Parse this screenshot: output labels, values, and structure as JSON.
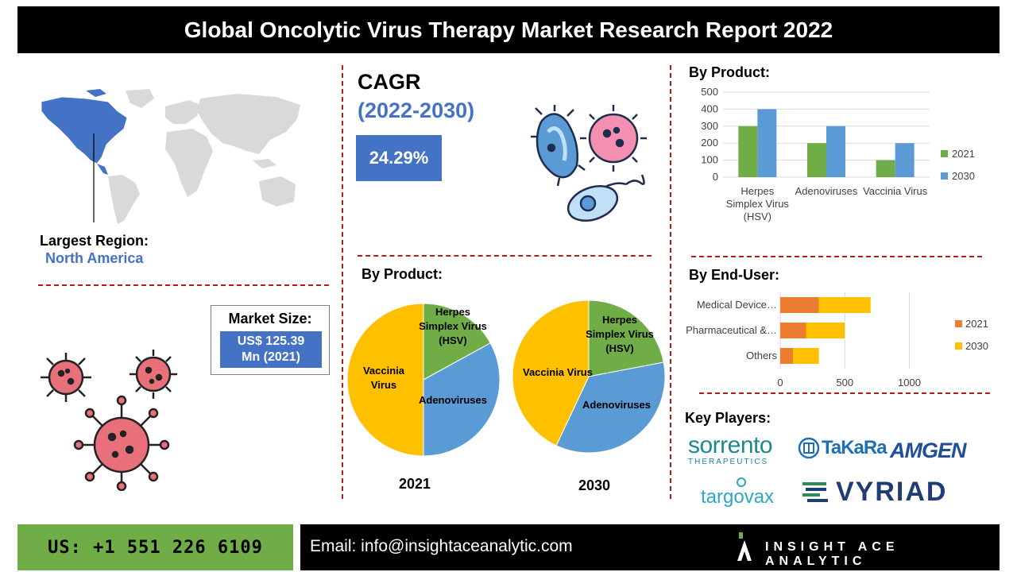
{
  "title": "Global Oncolytic Virus Therapy Market Research Report 2022",
  "region": {
    "label": "Largest Region:",
    "value": "North America"
  },
  "cagr": {
    "title": "CAGR",
    "period": "(2022-2030)",
    "value": "24.29%"
  },
  "market_size": {
    "label": "Market Size:",
    "value_line1": "US$ 125.39",
    "value_line2": "Mn (2021)"
  },
  "sections": {
    "by_product_top": "By Product:",
    "by_product_mid": "By Product:",
    "by_end_user": "By End-User:",
    "key_players": "Key Players:"
  },
  "pie_labels": {
    "hsv_line1": "Herpes",
    "hsv_line2": "Simplex Virus",
    "hsv_line3": "(HSV)",
    "adeno": "Adenoviruses",
    "vaccinia_line1": "Vaccinia",
    "vaccinia_line2": "Virus",
    "vaccinia_2030": "Vaccinia Virus"
  },
  "key_players": {
    "sorrento_main": "sorrento",
    "sorrento_sub": "THERAPEUTICS",
    "takara": "TaKaRa",
    "amgen": "AMGEN",
    "targovax": "targovax",
    "vyriad": "VYRIAD"
  },
  "footer": {
    "phone": "US: +1 551 226 6109",
    "email": "Email: info@insightaceanalytic.com",
    "brand": "INSIGHT ACE ANALYTIC"
  },
  "colors": {
    "blue": "#4472c4",
    "green": "#70ad47",
    "light_blue": "#5b9bd5",
    "orange": "#ed7d31",
    "yellow": "#ffc000",
    "red_dash": "#b71c1c"
  },
  "chart_data": [
    {
      "id": "product_bar",
      "type": "bar",
      "categories": [
        "Herpes Simplex Virus (HSV)",
        "Adenoviruses",
        "Vaccinia Virus"
      ],
      "category_lines": [
        [
          "Herpes",
          "Simplex Virus",
          "(HSV)"
        ],
        [
          "Adenoviruses"
        ],
        [
          "Vaccinia Virus"
        ]
      ],
      "series": [
        {
          "name": "2021",
          "values": [
            300,
            200,
            100
          ],
          "color": "#70ad47"
        },
        {
          "name": "2030",
          "values": [
            400,
            300,
            200
          ],
          "color": "#5b9bd5"
        }
      ],
      "ylim": [
        0,
        500
      ],
      "yticks": [
        0,
        100,
        200,
        300,
        400,
        500
      ],
      "grid": true,
      "legend": "right"
    },
    {
      "id": "pie_2021",
      "type": "pie",
      "year": "2021",
      "labels": [
        "Herpes Simplex Virus (HSV)",
        "Adenoviruses",
        "Vaccinia Virus"
      ],
      "values": [
        17,
        33,
        50
      ],
      "colors": [
        "#70ad47",
        "#5b9bd5",
        "#ffc000"
      ]
    },
    {
      "id": "pie_2030",
      "type": "pie",
      "year": "2030",
      "labels": [
        "Herpes Simplex Virus (HSV)",
        "Adenoviruses",
        "Vaccinia Virus"
      ],
      "values": [
        22,
        35,
        43
      ],
      "colors": [
        "#70ad47",
        "#5b9bd5",
        "#ffc000"
      ]
    },
    {
      "id": "end_user_bar",
      "type": "bar",
      "orientation": "horizontal",
      "categories": [
        "Medical Device…",
        "Pharmaceutical &…",
        "Others"
      ],
      "series": [
        {
          "name": "2021",
          "values": [
            300,
            200,
            100
          ],
          "color": "#ed7d31"
        },
        {
          "name": "2030",
          "values": [
            400,
            300,
            200
          ],
          "color": "#ffc000"
        }
      ],
      "stacked": true,
      "xlim": [
        0,
        1200
      ],
      "xticks": [
        0,
        500,
        1000
      ],
      "grid": true,
      "legend": "right"
    }
  ]
}
